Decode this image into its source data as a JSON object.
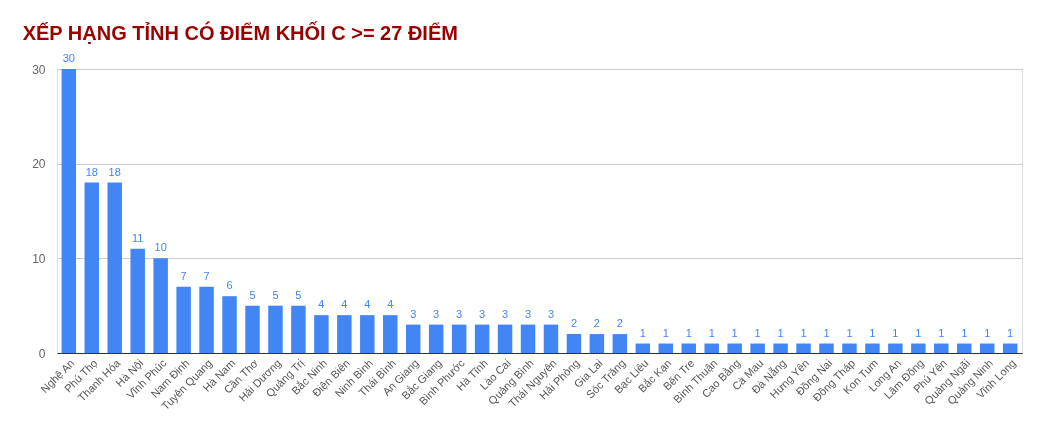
{
  "chart_data": {
    "type": "bar",
    "title": "XẾP HẠNG TỈNH CÓ ĐIỂM KHỐI C >= 27 ĐIỂM",
    "categories": [
      "Nghệ An",
      "Phú Thọ",
      "Thanh Hóa",
      "Hà Nội",
      "Vĩnh Phúc",
      "Nam Định",
      "Tuyên Quang",
      "Hà Nam",
      "Cần Thơ",
      "Hải Dương",
      "Quảng Trị",
      "Bắc Ninh",
      "Điện Biên",
      "Ninh Bình",
      "Thái Bình",
      "An Giang",
      "Bắc Giang",
      "Bình Phước",
      "Hà Tĩnh",
      "Lào Cai",
      "Quảng Bình",
      "Thái Nguyên",
      "Hải Phòng",
      "Gia Lai",
      "Sóc Trăng",
      "Bạc Liêu",
      "Bắc Kạn",
      "Bến Tre",
      "Bình Thuận",
      "Cao Bằng",
      "Cà Mau",
      "Đà Nẵng",
      "Hưng Yên",
      "Đồng Nai",
      "Đồng Tháp",
      "Kon Tum",
      "Long An",
      "Lâm Đồng",
      "Phú Yên",
      "Quảng Ngãi",
      "Quảng Ninh",
      "Vĩnh Long"
    ],
    "values": [
      30,
      18,
      18,
      11,
      10,
      7,
      7,
      6,
      5,
      5,
      5,
      4,
      4,
      4,
      4,
      3,
      3,
      3,
      3,
      3,
      3,
      3,
      2,
      2,
      2,
      1,
      1,
      1,
      1,
      1,
      1,
      1,
      1,
      1,
      1,
      1,
      1,
      1,
      1,
      1,
      1,
      1
    ],
    "color": "#4285f4",
    "ylim": [
      0,
      30
    ],
    "yticks": [
      0,
      10,
      20,
      30
    ],
    "grid": "y",
    "data_labels": true
  }
}
